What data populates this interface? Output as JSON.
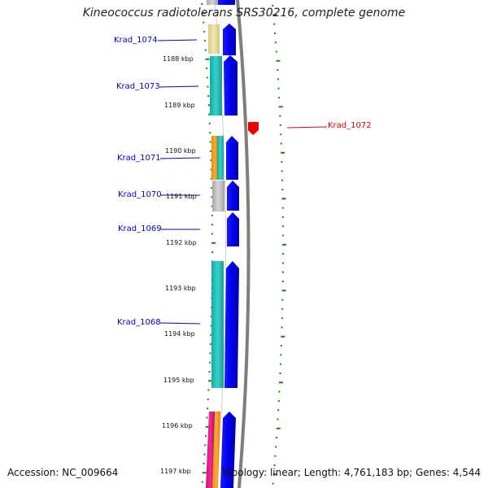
{
  "title": "Kineococcus radiotolerans SRS30216, complete genome",
  "footer": {
    "accession": "Accession: NC_009664",
    "summary": "Topology: linear; Length: 4,761,183 bp; Genes: 4,544"
  },
  "genes": [
    {
      "name": "Krad_1074",
      "color": "#0000cc"
    },
    {
      "name": "Krad_1073",
      "color": "#0000cc"
    },
    {
      "name": "Krad_1072",
      "color": "#dd0000"
    },
    {
      "name": "Krad_1071",
      "color": "#0000cc"
    },
    {
      "name": "Krad_1070",
      "color": "#0000cc"
    },
    {
      "name": "Krad_1069",
      "color": "#0000cc"
    },
    {
      "name": "Krad_1068",
      "color": "#0000cc"
    }
  ],
  "ticks": [
    "1188 kbp",
    "1189 kbp",
    "1190 kbp",
    "1191 kbp",
    "1192 kbp",
    "1193 kbp",
    "1194 kbp",
    "1195 kbp",
    "1196 kbp",
    "1197 kbp"
  ],
  "colors": {
    "forward_strand": "#0000ee",
    "reverse_strand": "#ee0000",
    "tick_marks": "#118811",
    "backbone": "#888888",
    "cog_yellow": "#e8dc9a",
    "cog_cyan": "#2cc7c0",
    "cog_orange": "#f59a1d",
    "cog_gray": "#c4c4c4",
    "cog_magenta": "#e0208a"
  }
}
